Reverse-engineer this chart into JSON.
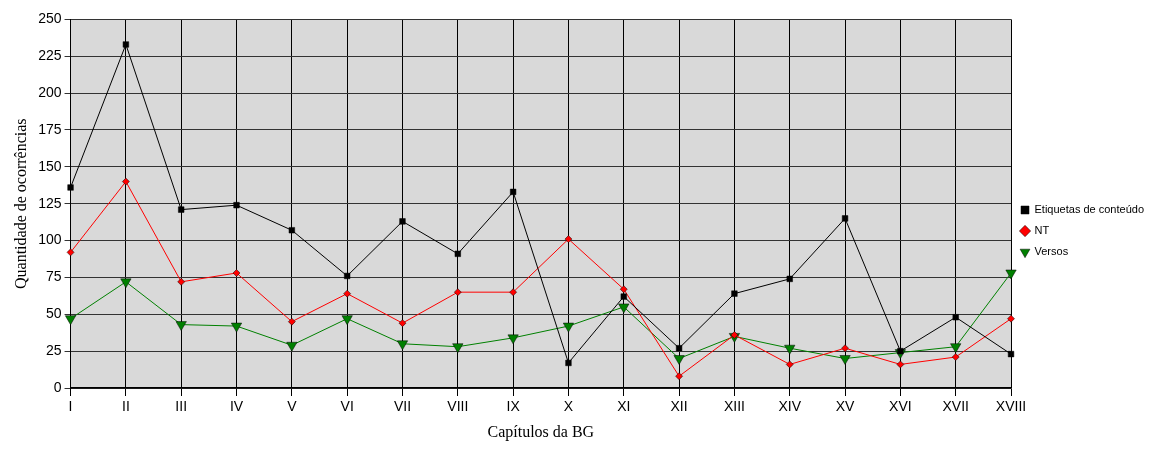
{
  "chart_data": {
    "type": "line",
    "xlabel": "Capítulos da BG",
    "ylabel": "Quantidade de ocorrências",
    "categories": [
      "I",
      "II",
      "III",
      "IV",
      "V",
      "VI",
      "VII",
      "VIII",
      "IX",
      "X",
      "XI",
      "XII",
      "XIII",
      "XIV",
      "XV",
      "XVI",
      "XVII",
      "XVIII"
    ],
    "ylim": [
      0,
      250
    ],
    "yticks": [
      0,
      25,
      50,
      75,
      100,
      125,
      150,
      175,
      200,
      225,
      250
    ],
    "grid": true,
    "legend": "right",
    "series": [
      {
        "name": "Etiquetas de conteúdo",
        "color": "#000000",
        "marker": "square",
        "values": [
          136,
          233,
          121,
          124,
          107,
          76,
          113,
          91,
          133,
          17,
          62,
          27,
          64,
          74,
          115,
          25,
          48,
          23
        ]
      },
      {
        "name": "NT",
        "color": "#ff0000",
        "marker": "diamond",
        "values": [
          92,
          140,
          72,
          78,
          45,
          64,
          44,
          65,
          65,
          101,
          67,
          8,
          36,
          16,
          27,
          16,
          21,
          47
        ]
      },
      {
        "name": "Versos",
        "color": "#008000",
        "marker": "triangle",
        "values": [
          47,
          72,
          43,
          42,
          29,
          47,
          30,
          28,
          34,
          42,
          55,
          20,
          35,
          27,
          20,
          24,
          28,
          78
        ]
      }
    ]
  }
}
